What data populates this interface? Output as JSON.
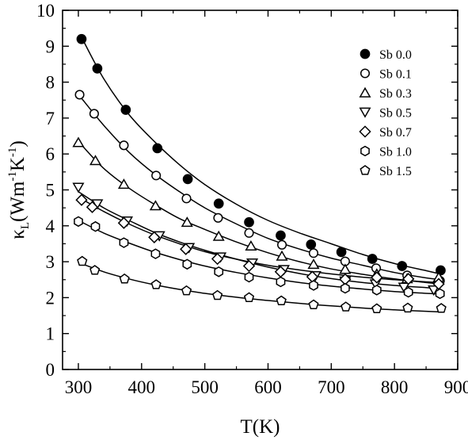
{
  "chart_data": {
    "type": "scatter",
    "xlabel": "T(K)",
    "ylabel_parts": {
      "symbol": "κ",
      "sub": "L",
      "open": "(Wm",
      "sup1": "-1",
      "mid": "K",
      "sup2": "-1",
      "close": ")"
    },
    "xlim": [
      275,
      900
    ],
    "ylim": [
      0,
      10
    ],
    "xticks": [
      "300",
      "400",
      "500",
      "600",
      "700",
      "800",
      "900"
    ],
    "yticks": [
      "0",
      "1",
      "2",
      "3",
      "4",
      "5",
      "6",
      "7",
      "8",
      "9",
      "10"
    ],
    "xtick_values": [
      300,
      400,
      500,
      600,
      700,
      800,
      900
    ],
    "ytick_values": [
      0,
      1,
      2,
      3,
      4,
      5,
      6,
      7,
      8,
      9,
      10
    ],
    "legend_position": "top-right",
    "series": [
      {
        "name": "Sb 0.0",
        "marker": "circle-filled",
        "x": [
          305,
          330,
          375,
          425,
          473,
          522,
          570,
          620,
          668,
          716,
          765,
          812,
          873
        ],
        "y": [
          9.2,
          8.38,
          7.23,
          6.16,
          5.3,
          4.62,
          4.1,
          3.73,
          3.48,
          3.27,
          3.08,
          2.88,
          2.76
        ]
      },
      {
        "name": "Sb 0.1",
        "marker": "circle-open",
        "x": [
          302,
          325,
          372,
          423,
          471,
          521,
          570,
          622,
          672,
          722,
          771,
          820,
          872
        ],
        "y": [
          7.65,
          7.12,
          6.24,
          5.4,
          4.76,
          4.22,
          3.8,
          3.47,
          3.24,
          3.01,
          2.82,
          2.62,
          2.47
        ]
      },
      {
        "name": "Sb 0.3",
        "marker": "triangle-up",
        "x": [
          300,
          327,
          372,
          422,
          472,
          522,
          573,
          622,
          672,
          722,
          772,
          820,
          870
        ],
        "y": [
          6.32,
          5.82,
          5.16,
          4.56,
          4.1,
          3.71,
          3.44,
          3.16,
          2.93,
          2.79,
          2.66,
          2.53,
          2.57
        ]
      },
      {
        "name": "Sb 0.5",
        "marker": "triangle-down",
        "x": [
          300,
          330,
          377,
          428,
          475,
          525,
          575,
          625,
          675,
          722,
          770,
          815,
          862
        ],
        "y": [
          5.07,
          4.61,
          4.13,
          3.72,
          3.39,
          3.13,
          2.96,
          2.78,
          2.61,
          2.46,
          2.38,
          2.29,
          2.21
        ]
      },
      {
        "name": "Sb 0.7",
        "marker": "diamond",
        "x": [
          305,
          322,
          372,
          420,
          470,
          520,
          570,
          620,
          670,
          722,
          772,
          822,
          870
        ],
        "y": [
          4.72,
          4.52,
          4.08,
          3.68,
          3.35,
          3.08,
          2.88,
          2.72,
          2.58,
          2.51,
          2.56,
          2.52,
          2.38
        ]
      },
      {
        "name": "Sb 1.0",
        "marker": "hexagon",
        "x": [
          300,
          327,
          372,
          422,
          472,
          522,
          570,
          620,
          672,
          722,
          772,
          822,
          872
        ],
        "y": [
          4.12,
          3.98,
          3.53,
          3.22,
          2.93,
          2.72,
          2.57,
          2.44,
          2.34,
          2.26,
          2.21,
          2.15,
          2.11
        ]
      },
      {
        "name": "Sb 1.5",
        "marker": "pentagon",
        "x": [
          306,
          326,
          373,
          423,
          471,
          520,
          570,
          621,
          672,
          723,
          772,
          821,
          874
        ],
        "y": [
          3.01,
          2.76,
          2.52,
          2.36,
          2.19,
          2.06,
          2.0,
          1.91,
          1.8,
          1.74,
          1.69,
          1.71,
          1.7
        ]
      }
    ],
    "fit_curves": [
      {
        "series": "Sb 0.0",
        "x": [
          305,
          340,
          380,
          420,
          460,
          500,
          550,
          600,
          650,
          700,
          750,
          800,
          850,
          875
        ],
        "y": [
          9.25,
          8.1,
          7.1,
          6.35,
          5.7,
          5.15,
          4.6,
          4.15,
          3.8,
          3.5,
          3.2,
          2.95,
          2.75,
          2.65
        ]
      },
      {
        "series": "Sb 0.1",
        "x": [
          305,
          340,
          380,
          420,
          460,
          500,
          550,
          600,
          650,
          700,
          750,
          800,
          850,
          875
        ],
        "y": [
          7.55,
          6.8,
          6.05,
          5.45,
          4.95,
          4.5,
          4.05,
          3.65,
          3.35,
          3.1,
          2.9,
          2.7,
          2.55,
          2.5
        ]
      },
      {
        "series": "Sb 0.3",
        "x": [
          305,
          340,
          380,
          420,
          460,
          500,
          550,
          600,
          650,
          700,
          750,
          800,
          850,
          875
        ],
        "y": [
          6.25,
          5.6,
          5.05,
          4.6,
          4.2,
          3.9,
          3.55,
          3.25,
          3.0,
          2.8,
          2.65,
          2.52,
          2.42,
          2.38
        ]
      },
      {
        "series": "Sb 0.5",
        "x": [
          300,
          340,
          380,
          420,
          460,
          500,
          550,
          600,
          650,
          700,
          750,
          800,
          850,
          870
        ],
        "y": [
          4.95,
          4.5,
          4.15,
          3.82,
          3.55,
          3.32,
          3.07,
          2.85,
          2.67,
          2.53,
          2.42,
          2.34,
          2.28,
          2.26
        ]
      },
      {
        "series": "Sb 0.7",
        "x": [
          300,
          340,
          380,
          420,
          460,
          500,
          550,
          600,
          650,
          700,
          750,
          800,
          850,
          875
        ],
        "y": [
          4.8,
          4.4,
          4.05,
          3.75,
          3.5,
          3.28,
          3.07,
          2.9,
          2.77,
          2.66,
          2.57,
          2.5,
          2.44,
          2.42
        ]
      },
      {
        "series": "Sb 1.0",
        "x": [
          300,
          340,
          380,
          420,
          460,
          500,
          550,
          600,
          650,
          700,
          750,
          800,
          850,
          875
        ],
        "y": [
          4.15,
          3.8,
          3.52,
          3.27,
          3.06,
          2.88,
          2.7,
          2.55,
          2.42,
          2.32,
          2.24,
          2.17,
          2.12,
          2.1
        ]
      },
      {
        "series": "Sb 1.5",
        "x": [
          300,
          340,
          380,
          420,
          460,
          500,
          550,
          600,
          650,
          700,
          750,
          800,
          850,
          875
        ],
        "y": [
          2.98,
          2.72,
          2.52,
          2.36,
          2.23,
          2.12,
          2.01,
          1.92,
          1.84,
          1.77,
          1.71,
          1.66,
          1.62,
          1.6
        ]
      }
    ]
  }
}
